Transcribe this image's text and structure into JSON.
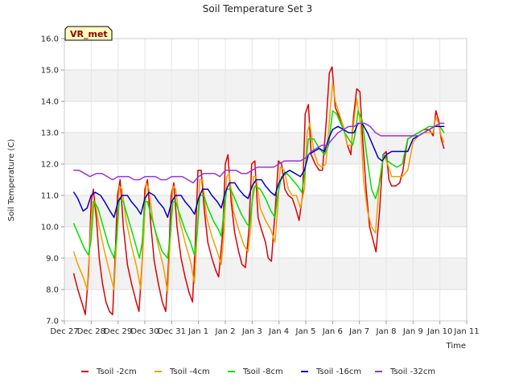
{
  "chart_data": {
    "type": "line",
    "title": "Soil Temperature Set 3",
    "xlabel": "Time",
    "ylabel": "Soil Temperature (C)",
    "badge": "VR_met",
    "ylim": [
      7.0,
      16.0
    ],
    "xlim": [
      0,
      15
    ],
    "yticks": [
      7.0,
      8.0,
      9.0,
      10.0,
      11.0,
      12.0,
      13.0,
      14.0,
      15.0,
      16.0
    ],
    "ytick_labels": [
      "7.0",
      "8.0",
      "9.0",
      "10.0",
      "11.0",
      "12.0",
      "13.0",
      "14.0",
      "15.0",
      "16.0"
    ],
    "xticks": [
      0,
      1,
      2,
      3,
      4,
      5,
      6,
      7,
      8,
      9,
      10,
      11,
      12,
      13,
      14,
      15
    ],
    "xtick_labels": [
      "Dec 27",
      "Dec 28",
      "Dec 29",
      "Dec 30",
      "Dec 31",
      "Jan 1",
      "Jan 2",
      "Jan 3",
      "Jan 4",
      "Jan 5",
      "Jan 6",
      "Jan 7",
      "Jan 8",
      "Jan 9",
      "Jan 10",
      "Jan 11"
    ],
    "grid": true,
    "legend_position": "bottom",
    "series": [
      {
        "name": "Tsoil -2cm",
        "color": "#dd0000",
        "x": [
          0.35,
          0.5,
          0.68,
          0.78,
          0.9,
          1.0,
          1.08,
          1.2,
          1.3,
          1.42,
          1.55,
          1.68,
          1.8,
          1.88,
          1.98,
          2.08,
          2.2,
          2.35,
          2.5,
          2.68,
          2.78,
          2.9,
          3.0,
          3.1,
          3.22,
          3.35,
          3.5,
          3.65,
          3.78,
          3.88,
          3.98,
          4.08,
          4.2,
          4.35,
          4.5,
          4.65,
          4.78,
          4.88,
          4.98,
          5.1,
          5.22,
          5.35,
          5.5,
          5.65,
          5.75,
          5.9,
          6.0,
          6.1,
          6.22,
          6.35,
          6.5,
          6.62,
          6.75,
          6.88,
          6.98,
          7.1,
          7.22,
          7.35,
          7.5,
          7.6,
          7.72,
          7.88,
          7.98,
          8.1,
          8.22,
          8.35,
          8.5,
          8.62,
          8.75,
          8.88,
          8.98,
          9.1,
          9.2,
          9.35,
          9.5,
          9.62,
          9.75,
          9.88,
          9.98,
          10.1,
          10.25,
          10.4,
          10.55,
          10.68,
          10.78,
          10.9,
          11.02,
          11.12,
          11.25,
          11.38,
          11.5,
          11.62,
          11.75,
          11.88,
          12.0,
          12.1,
          12.2,
          12.35,
          12.5,
          12.62,
          12.8,
          13.0,
          13.2,
          13.4,
          13.6,
          13.75,
          13.85,
          13.95,
          14.05,
          14.15
        ],
        "values": [
          8.5,
          8.0,
          7.5,
          7.2,
          8.5,
          10.8,
          11.2,
          10.2,
          9.0,
          8.2,
          7.6,
          7.3,
          7.2,
          8.8,
          11.0,
          11.5,
          10.0,
          8.8,
          8.2,
          7.6,
          7.3,
          8.9,
          11.2,
          11.5,
          10.1,
          8.9,
          8.2,
          7.6,
          7.3,
          8.8,
          11.0,
          11.4,
          10.0,
          9.0,
          8.4,
          7.9,
          7.6,
          9.5,
          11.8,
          11.8,
          10.5,
          9.5,
          9.0,
          8.6,
          8.4,
          9.8,
          12.0,
          12.3,
          10.8,
          9.8,
          9.2,
          8.8,
          8.7,
          9.9,
          12.0,
          12.1,
          10.3,
          9.9,
          9.5,
          9.0,
          8.9,
          10.8,
          12.1,
          12.0,
          11.2,
          11.0,
          10.9,
          10.6,
          10.2,
          11.0,
          13.6,
          13.9,
          12.3,
          12.0,
          11.8,
          11.8,
          13.2,
          14.9,
          15.1,
          13.8,
          13.5,
          13.2,
          12.6,
          12.3,
          13.5,
          14.4,
          14.3,
          12.8,
          11.2,
          10.0,
          9.6,
          9.2,
          10.5,
          12.3,
          12.4,
          11.5,
          11.3,
          11.3,
          11.4,
          11.8,
          12.8,
          12.9,
          13.0,
          13.1,
          13.1,
          12.9,
          13.7,
          13.4,
          12.8,
          12.5
        ]
      },
      {
        "name": "Tsoil -4cm",
        "color": "#f0a000",
        "x": [
          0.35,
          0.5,
          0.7,
          0.85,
          0.95,
          1.05,
          1.15,
          1.3,
          1.5,
          1.7,
          1.85,
          1.95,
          2.05,
          2.15,
          2.3,
          2.5,
          2.7,
          2.85,
          2.95,
          3.05,
          3.15,
          3.3,
          3.5,
          3.7,
          3.85,
          3.95,
          4.05,
          4.15,
          4.3,
          4.5,
          4.7,
          4.85,
          4.95,
          5.05,
          5.15,
          5.3,
          5.5,
          5.7,
          5.85,
          5.95,
          6.05,
          6.15,
          6.3,
          6.5,
          6.7,
          6.85,
          6.95,
          7.05,
          7.15,
          7.3,
          7.5,
          7.7,
          7.85,
          7.95,
          8.05,
          8.2,
          8.35,
          8.5,
          8.65,
          8.8,
          8.95,
          9.05,
          9.15,
          9.3,
          9.45,
          9.6,
          9.75,
          9.9,
          10.0,
          10.1,
          10.25,
          10.4,
          10.55,
          10.7,
          10.8,
          10.9,
          11.05,
          11.15,
          11.3,
          11.45,
          11.6,
          11.75,
          11.9,
          12.05,
          12.2,
          12.4,
          12.6,
          12.8,
          13.0,
          13.2,
          13.4,
          13.6,
          13.75,
          13.85,
          13.95,
          14.05,
          14.15
        ],
        "values": [
          9.2,
          8.8,
          8.4,
          8.0,
          9.5,
          10.8,
          10.8,
          10.0,
          9.2,
          8.5,
          8.0,
          9.6,
          11.3,
          11.2,
          10.2,
          9.4,
          8.7,
          8.0,
          9.6,
          11.4,
          11.2,
          10.2,
          9.4,
          8.7,
          7.9,
          9.7,
          11.3,
          11.2,
          10.2,
          9.5,
          8.9,
          8.2,
          9.8,
          11.5,
          11.5,
          10.3,
          9.7,
          9.2,
          8.8,
          9.8,
          11.6,
          11.7,
          10.5,
          9.9,
          9.4,
          9.2,
          10.0,
          11.6,
          11.6,
          10.6,
          10.2,
          9.9,
          9.5,
          10.6,
          11.9,
          11.8,
          11.2,
          11.0,
          11.0,
          10.6,
          11.2,
          13.0,
          13.3,
          12.4,
          12.0,
          11.9,
          12.0,
          13.6,
          14.6,
          14.0,
          13.6,
          13.2,
          12.6,
          12.6,
          13.4,
          14.1,
          13.2,
          11.5,
          10.5,
          10.0,
          9.8,
          11.5,
          12.3,
          12.0,
          11.6,
          11.6,
          11.6,
          11.8,
          12.7,
          12.9,
          13.0,
          13.0,
          13.0,
          13.5,
          13.3,
          12.9,
          12.7
        ]
      },
      {
        "name": "Tsoil -8cm",
        "color": "#00e000",
        "x": [
          0.35,
          0.55,
          0.75,
          0.9,
          1.0,
          1.1,
          1.25,
          1.45,
          1.65,
          1.85,
          1.95,
          2.05,
          2.2,
          2.4,
          2.6,
          2.8,
          2.9,
          3.0,
          3.1,
          3.25,
          3.45,
          3.65,
          3.85,
          3.95,
          4.05,
          4.15,
          4.3,
          4.5,
          4.7,
          4.85,
          4.95,
          5.05,
          5.2,
          5.35,
          5.55,
          5.75,
          5.85,
          5.95,
          6.05,
          6.2,
          6.4,
          6.6,
          6.8,
          6.9,
          7.0,
          7.1,
          7.3,
          7.5,
          7.7,
          7.85,
          7.95,
          8.1,
          8.3,
          8.5,
          8.7,
          8.85,
          8.95,
          9.1,
          9.3,
          9.5,
          9.7,
          9.85,
          10.0,
          10.15,
          10.3,
          10.45,
          10.6,
          10.75,
          10.85,
          10.95,
          11.1,
          11.3,
          11.45,
          11.6,
          11.75,
          11.9,
          12.05,
          12.2,
          12.4,
          12.6,
          12.8,
          13.0,
          13.2,
          13.4,
          13.6,
          13.8,
          14.0,
          14.15
        ],
        "values": [
          10.1,
          9.7,
          9.3,
          9.1,
          9.6,
          10.8,
          10.6,
          10.0,
          9.4,
          9.0,
          9.6,
          10.9,
          10.8,
          10.2,
          9.6,
          9.0,
          9.5,
          10.8,
          10.8,
          10.3,
          9.7,
          9.2,
          9.0,
          9.8,
          10.8,
          10.8,
          10.4,
          9.9,
          9.5,
          9.1,
          9.8,
          11.0,
          11.0,
          10.6,
          10.2,
          9.9,
          9.7,
          10.5,
          11.2,
          11.2,
          10.8,
          10.4,
          10.1,
          10.0,
          10.8,
          11.3,
          11.2,
          10.9,
          10.5,
          10.3,
          11.0,
          11.6,
          11.7,
          11.5,
          11.3,
          11.1,
          11.6,
          12.8,
          12.8,
          12.5,
          12.3,
          12.6,
          13.7,
          13.6,
          13.3,
          13.0,
          12.8,
          12.6,
          13.0,
          13.7,
          13.4,
          12.1,
          11.2,
          10.9,
          11.4,
          12.3,
          12.1,
          12.0,
          11.9,
          12.0,
          12.8,
          12.9,
          13.0,
          13.1,
          13.2,
          13.2,
          13.2,
          13.0
        ]
      },
      {
        "name": "Tsoil -16cm",
        "color": "#0000cc",
        "x": [
          0.35,
          0.5,
          0.7,
          0.85,
          1.0,
          1.15,
          1.35,
          1.5,
          1.7,
          1.85,
          2.0,
          2.15,
          2.35,
          2.5,
          2.7,
          2.85,
          3.0,
          3.15,
          3.35,
          3.5,
          3.7,
          3.85,
          4.0,
          4.15,
          4.35,
          4.5,
          4.7,
          4.85,
          5.0,
          5.15,
          5.35,
          5.5,
          5.7,
          5.85,
          6.0,
          6.15,
          6.35,
          6.5,
          6.7,
          6.85,
          7.0,
          7.15,
          7.35,
          7.5,
          7.7,
          7.85,
          8.0,
          8.2,
          8.4,
          8.6,
          8.8,
          8.95,
          9.1,
          9.3,
          9.5,
          9.7,
          9.85,
          10.0,
          10.2,
          10.4,
          10.6,
          10.8,
          10.95,
          11.1,
          11.3,
          11.5,
          11.7,
          11.85,
          12.0,
          12.2,
          12.4,
          12.6,
          12.8,
          13.0,
          13.2,
          13.4,
          13.6,
          13.8,
          14.0,
          14.15
        ],
        "values": [
          11.1,
          10.9,
          10.5,
          10.6,
          11.0,
          11.1,
          11.0,
          10.8,
          10.5,
          10.3,
          10.8,
          11.0,
          11.0,
          10.8,
          10.6,
          10.4,
          10.9,
          11.1,
          11.0,
          10.8,
          10.6,
          10.3,
          10.8,
          11.0,
          11.0,
          10.8,
          10.6,
          10.4,
          10.9,
          11.2,
          11.2,
          11.0,
          10.8,
          10.6,
          11.1,
          11.4,
          11.4,
          11.2,
          11.0,
          10.9,
          11.3,
          11.5,
          11.5,
          11.3,
          11.1,
          11.0,
          11.4,
          11.7,
          11.8,
          11.7,
          11.6,
          11.8,
          12.3,
          12.4,
          12.5,
          12.4,
          12.8,
          13.1,
          13.2,
          13.1,
          13.0,
          13.0,
          13.3,
          13.3,
          13.0,
          12.6,
          12.2,
          12.1,
          12.3,
          12.4,
          12.4,
          12.4,
          12.4,
          12.8,
          12.9,
          13.0,
          13.1,
          13.2,
          13.2,
          13.2
        ]
      },
      {
        "name": "Tsoil -32cm",
        "color": "#9933dd",
        "x": [
          0.35,
          0.55,
          0.75,
          0.95,
          1.2,
          1.4,
          1.6,
          1.8,
          2.0,
          2.2,
          2.4,
          2.6,
          2.8,
          3.0,
          3.2,
          3.4,
          3.6,
          3.8,
          4.0,
          4.2,
          4.4,
          4.6,
          4.8,
          5.0,
          5.2,
          5.4,
          5.6,
          5.8,
          6.0,
          6.2,
          6.4,
          6.6,
          6.8,
          7.0,
          7.2,
          7.4,
          7.6,
          7.8,
          8.0,
          8.2,
          8.4,
          8.6,
          8.8,
          9.0,
          9.2,
          9.4,
          9.6,
          9.8,
          10.0,
          10.2,
          10.4,
          10.6,
          10.8,
          11.0,
          11.2,
          11.4,
          11.6,
          11.8,
          12.0,
          12.2,
          12.4,
          12.6,
          12.8,
          13.0,
          13.2,
          13.4,
          13.6,
          13.8,
          14.0,
          14.15
        ],
        "values": [
          11.8,
          11.8,
          11.7,
          11.6,
          11.7,
          11.7,
          11.6,
          11.5,
          11.6,
          11.6,
          11.6,
          11.5,
          11.5,
          11.6,
          11.6,
          11.6,
          11.5,
          11.5,
          11.6,
          11.6,
          11.6,
          11.5,
          11.4,
          11.6,
          11.7,
          11.7,
          11.7,
          11.6,
          11.8,
          11.8,
          11.8,
          11.7,
          11.7,
          11.8,
          11.9,
          11.9,
          11.9,
          11.9,
          12.0,
          12.1,
          12.1,
          12.1,
          12.1,
          12.2,
          12.4,
          12.5,
          12.6,
          12.6,
          12.8,
          13.0,
          13.1,
          13.2,
          13.2,
          13.3,
          13.3,
          13.2,
          13.0,
          12.9,
          12.9,
          12.9,
          12.9,
          12.9,
          12.9,
          12.9,
          12.9,
          13.0,
          13.1,
          13.2,
          13.3,
          13.3
        ]
      }
    ]
  }
}
